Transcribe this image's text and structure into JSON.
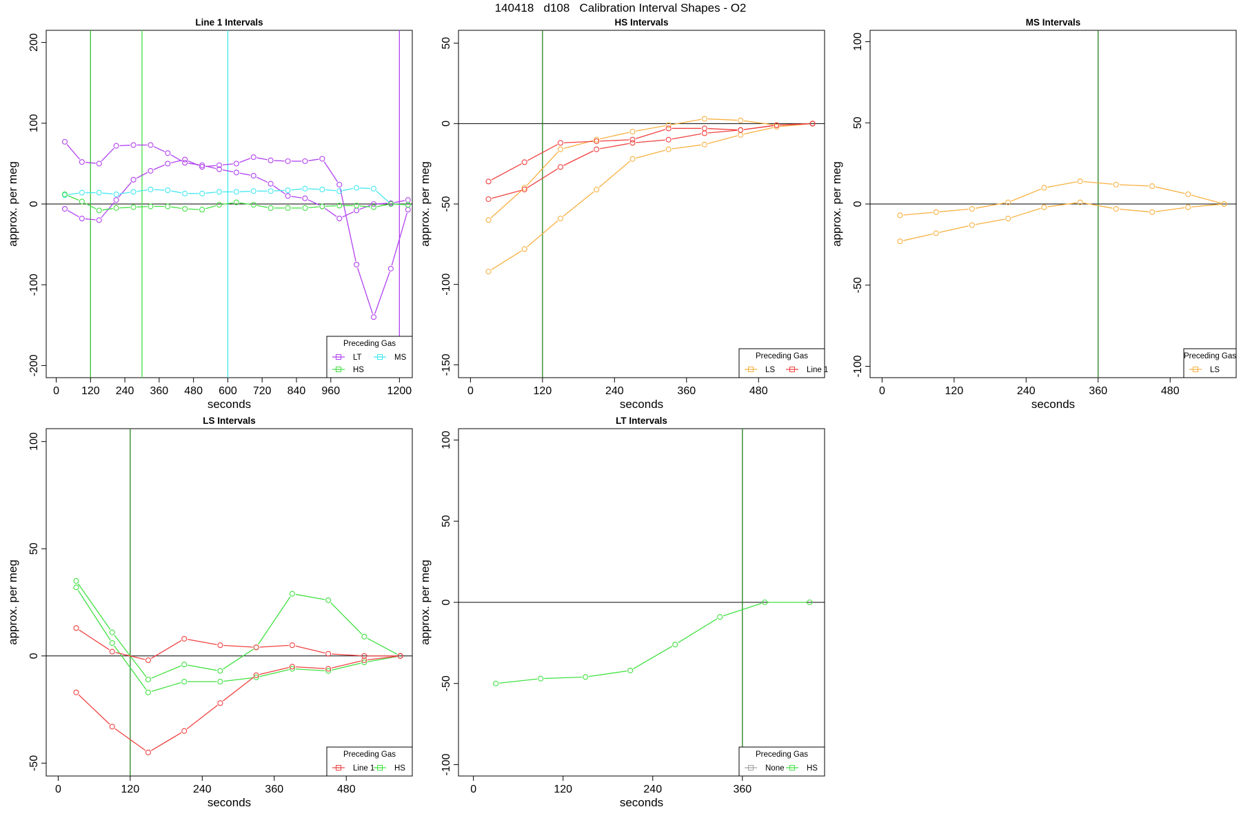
{
  "figure_title": "140418   d108   Calibration Interval Shapes - O2",
  "legend_title": "Preceding Gas",
  "colors": {
    "LT": "#b040f0",
    "HS": "#40e040",
    "MS": "#40e8f0",
    "LS": "#f8b040",
    "Line 1": "#f04040",
    "None": "#a0a0a0",
    "green_vline": "#208020",
    "zero_line": "#000000"
  },
  "chart_data": [
    {
      "type": "line",
      "title": "Line 1 Intervals",
      "xlabel": "seconds",
      "ylabel": "approx. per meg",
      "xlim": [
        -35,
        1245
      ],
      "ylim": [
        -215,
        215
      ],
      "xticks": [
        0,
        120,
        240,
        360,
        480,
        600,
        720,
        840,
        960,
        1200
      ],
      "yticks": [
        -200,
        -100,
        0,
        100,
        200
      ],
      "zero_line": true,
      "vlines": [
        {
          "x": 120,
          "color": "#30c030"
        },
        {
          "x": 300,
          "color": "#40e040"
        },
        {
          "x": 600,
          "color": "#40e8f0"
        },
        {
          "x": 1200,
          "color": "#b040f0"
        }
      ],
      "legend_placement": "bottom-right",
      "legend_layout": [
        [
          "LT",
          "MS"
        ],
        [
          "HS"
        ]
      ],
      "legend": [
        "LT",
        "HS",
        "MS"
      ],
      "series": [
        {
          "name": "LT",
          "x": [
            30,
            90,
            150,
            210,
            270,
            330,
            390,
            450,
            510,
            570,
            630,
            690,
            750,
            810,
            870,
            930,
            990,
            1050,
            1110,
            1170,
            1230
          ],
          "values": [
            77,
            52,
            50,
            72,
            73,
            73,
            63,
            51,
            48,
            43,
            39,
            35,
            25,
            10,
            7,
            -3,
            -18,
            -8,
            0,
            1,
            5
          ]
        },
        {
          "name": "LT",
          "x": [
            30,
            90,
            150,
            210,
            270,
            330,
            390,
            450,
            510,
            570,
            630,
            690,
            750,
            810,
            870,
            930,
            990,
            1050,
            1110,
            1170,
            1230
          ],
          "values": [
            -6,
            -18,
            -20,
            5,
            30,
            41,
            50,
            55,
            46,
            48,
            50,
            58,
            54,
            53,
            53,
            56,
            24,
            -75,
            -140,
            -80,
            -7
          ]
        },
        {
          "name": "MS",
          "x": [
            30,
            90,
            150,
            210,
            270,
            330,
            390,
            450,
            510,
            570,
            630,
            690,
            750,
            810,
            870,
            930,
            990,
            1050,
            1110,
            1170,
            1230
          ],
          "values": [
            11,
            14,
            14,
            12,
            15,
            18,
            17,
            13,
            13,
            15,
            15,
            16,
            16,
            17,
            19,
            18,
            16,
            20,
            19,
            0,
            -1
          ]
        },
        {
          "name": "HS",
          "x": [
            30,
            90,
            150,
            210,
            270,
            330,
            390,
            450,
            510,
            570,
            630,
            690,
            750,
            810,
            870,
            930,
            990,
            1050,
            1110,
            1170,
            1230
          ],
          "values": [
            12,
            3,
            -8,
            -5,
            -4,
            -3,
            -3,
            -6,
            -7,
            -1,
            2,
            -1,
            -5,
            -5,
            -5,
            -3,
            -2,
            -2,
            -4,
            0,
            -1
          ]
        }
      ]
    },
    {
      "type": "line",
      "title": "HS Intervals",
      "xlabel": "seconds",
      "ylabel": "approx. per meg",
      "xlim": [
        -20,
        590
      ],
      "ylim": [
        -158,
        58
      ],
      "xticks": [
        0,
        120,
        240,
        360,
        480
      ],
      "yticks": [
        -150,
        -100,
        -50,
        0,
        50
      ],
      "zero_line": true,
      "vlines": [
        {
          "x": 120,
          "color": "#208020"
        }
      ],
      "legend_placement": "bottom-right",
      "legend_layout": [
        [
          "LS",
          "Line 1"
        ]
      ],
      "legend": [
        "LS",
        "Line 1"
      ],
      "series": [
        {
          "name": "LS",
          "x": [
            30,
            90,
            150,
            210,
            270,
            330,
            390,
            450,
            510,
            570
          ],
          "values": [
            -92,
            -78,
            -59,
            -41,
            -22,
            -16,
            -13,
            -7,
            -2,
            0
          ]
        },
        {
          "name": "LS",
          "x": [
            30,
            90,
            150,
            210,
            270,
            330,
            390,
            450,
            510,
            570
          ],
          "values": [
            -60,
            -40,
            -16,
            -10,
            -5,
            -1,
            3,
            2,
            -1,
            0
          ]
        },
        {
          "name": "Line 1",
          "x": [
            30,
            90,
            150,
            210,
            270,
            330,
            390,
            450,
            510,
            570
          ],
          "values": [
            -36,
            -24,
            -12,
            -11,
            -10,
            -3,
            -3,
            -4,
            -1,
            0
          ]
        },
        {
          "name": "Line 1",
          "x": [
            30,
            90,
            150,
            210,
            270,
            330,
            390,
            450,
            510,
            570
          ],
          "values": [
            -47,
            -41,
            -27,
            -16,
            -12,
            -10,
            -6,
            -4,
            -1,
            0
          ]
        }
      ]
    },
    {
      "type": "line",
      "title": "MS Intervals",
      "xlabel": "seconds",
      "ylabel": "approx. per meg",
      "xlim": [
        -20,
        590
      ],
      "ylim": [
        -107,
        107
      ],
      "xticks": [
        0,
        120,
        240,
        360,
        480
      ],
      "yticks": [
        -100,
        -50,
        0,
        50,
        100
      ],
      "zero_line": true,
      "vlines": [
        {
          "x": 360,
          "color": "#208020"
        }
      ],
      "legend_placement": "bottom-right",
      "legend_layout": [
        [
          "LS"
        ]
      ],
      "legend": [
        "LS"
      ],
      "series": [
        {
          "name": "LS",
          "x": [
            30,
            90,
            150,
            210,
            270,
            330,
            390,
            450,
            510,
            570
          ],
          "values": [
            -7,
            -5,
            -3,
            1,
            10,
            14,
            12,
            11,
            6,
            0
          ]
        },
        {
          "name": "LS",
          "x": [
            30,
            90,
            150,
            210,
            270,
            330,
            390,
            450,
            510,
            570
          ],
          "values": [
            -23,
            -18,
            -13,
            -9,
            -2,
            1,
            -3,
            -5,
            -2,
            0
          ]
        }
      ]
    },
    {
      "type": "line",
      "title": "LS Intervals",
      "xlabel": "seconds",
      "ylabel": "approx. per meg",
      "xlim": [
        -20,
        590
      ],
      "ylim": [
        -56,
        106
      ],
      "xticks": [
        0,
        120,
        240,
        360,
        480
      ],
      "yticks": [
        -50,
        0,
        50,
        100
      ],
      "zero_line": true,
      "vlines": [
        {
          "x": 120,
          "color": "#208020"
        }
      ],
      "legend_placement": "bottom-right",
      "legend_layout": [
        [
          "Line 1",
          "HS"
        ]
      ],
      "legend": [
        "Line 1",
        "HS"
      ],
      "series": [
        {
          "name": "HS",
          "x": [
            30,
            90,
            150,
            210,
            270,
            330,
            390,
            450,
            510,
            570
          ],
          "values": [
            35,
            11,
            -11,
            -4,
            -7,
            4,
            29,
            26,
            9,
            0
          ]
        },
        {
          "name": "HS",
          "x": [
            30,
            90,
            150,
            210,
            270,
            330,
            390,
            450,
            510,
            570
          ],
          "values": [
            32,
            6,
            -17,
            -12,
            -12,
            -10,
            -6,
            -7,
            -3,
            0
          ]
        },
        {
          "name": "Line 1",
          "x": [
            30,
            90,
            150,
            210,
            270,
            330,
            390,
            450,
            510,
            570
          ],
          "values": [
            13,
            2,
            -2,
            8,
            5,
            4,
            5,
            1,
            0,
            0
          ]
        },
        {
          "name": "Line 1",
          "x": [
            30,
            90,
            150,
            210,
            270,
            330,
            390,
            450,
            510,
            570
          ],
          "values": [
            -17,
            -33,
            -45,
            -35,
            -22,
            -9,
            -5,
            -6,
            -2,
            0
          ]
        }
      ]
    },
    {
      "type": "line",
      "title": "LT Intervals",
      "xlabel": "seconds",
      "ylabel": "approx. per meg",
      "xlim": [
        -20,
        470
      ],
      "ylim": [
        -107,
        107
      ],
      "xticks": [
        0,
        120,
        240,
        360
      ],
      "yticks": [
        -100,
        -50,
        0,
        50,
        100
      ],
      "zero_line": true,
      "vlines": [
        {
          "x": 360,
          "color": "#208020"
        }
      ],
      "legend_placement": "bottom-right",
      "legend_layout": [
        [
          "None",
          "HS"
        ]
      ],
      "legend": [
        "None",
        "HS"
      ],
      "series": [
        {
          "name": "HS",
          "x": [
            30,
            90,
            150,
            210,
            270,
            330,
            390,
            450
          ],
          "values": [
            -50,
            -47,
            -46,
            -42,
            -26,
            -9,
            0,
            0
          ]
        }
      ]
    }
  ]
}
